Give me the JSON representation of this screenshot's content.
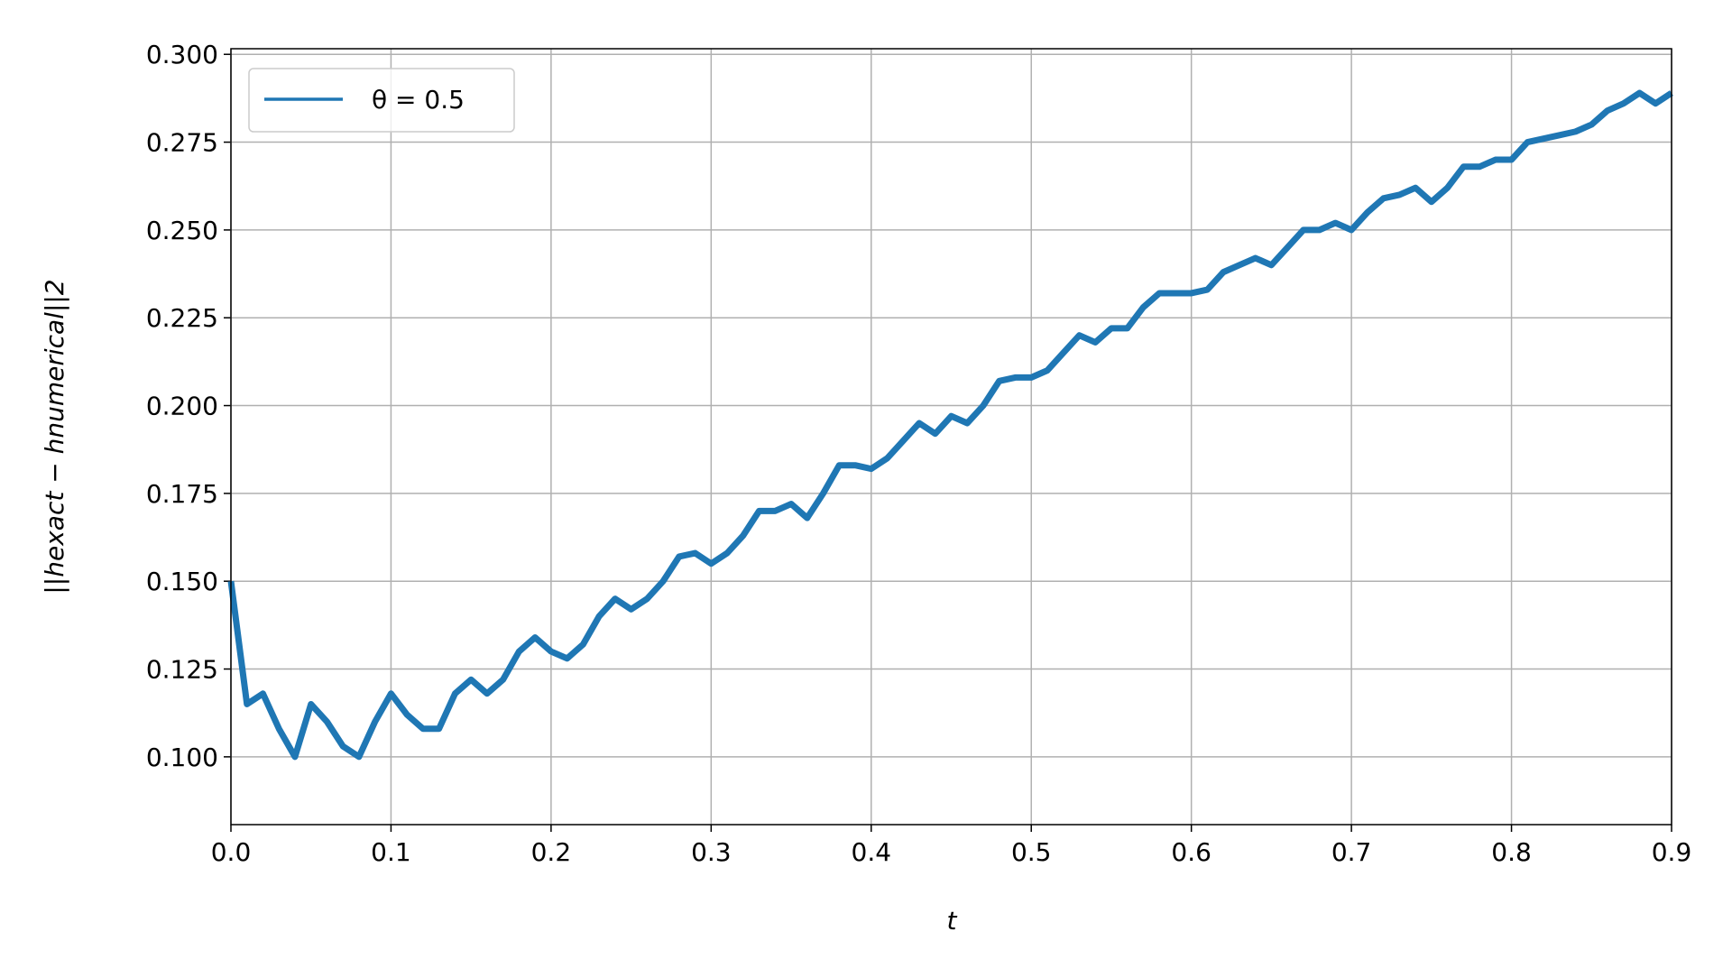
{
  "chart_data": {
    "type": "line",
    "xlabel": "t",
    "ylabel": "||hexact − hnumerical||2",
    "x": [
      0.0,
      0.01,
      0.02,
      0.03,
      0.04,
      0.05,
      0.06,
      0.07,
      0.08,
      0.09,
      0.1,
      0.11,
      0.12,
      0.13,
      0.14,
      0.15,
      0.16,
      0.17,
      0.18,
      0.19,
      0.2,
      0.21,
      0.22,
      0.23,
      0.24,
      0.25,
      0.26,
      0.27,
      0.28,
      0.29,
      0.3,
      0.31,
      0.32,
      0.33,
      0.34,
      0.35,
      0.36,
      0.37,
      0.38,
      0.39,
      0.4,
      0.41,
      0.42,
      0.43,
      0.44,
      0.45,
      0.46,
      0.47,
      0.48,
      0.49,
      0.5,
      0.51,
      0.52,
      0.53,
      0.54,
      0.55,
      0.56,
      0.57,
      0.58,
      0.59,
      0.6,
      0.61,
      0.62,
      0.63,
      0.64,
      0.65,
      0.66,
      0.67,
      0.68,
      0.69,
      0.7,
      0.71,
      0.72,
      0.73,
      0.74,
      0.75,
      0.76,
      0.77,
      0.78,
      0.79,
      0.8,
      0.81,
      0.82,
      0.83,
      0.84,
      0.85,
      0.86,
      0.87,
      0.88,
      0.89,
      0.9
    ],
    "series": [
      {
        "name": "θ = 0.5",
        "color": "#1f77b4",
        "values": [
          0.15,
          0.115,
          0.118,
          0.108,
          0.1,
          0.115,
          0.11,
          0.103,
          0.1,
          0.11,
          0.118,
          0.112,
          0.108,
          0.108,
          0.118,
          0.122,
          0.118,
          0.122,
          0.13,
          0.134,
          0.13,
          0.128,
          0.132,
          0.14,
          0.145,
          0.142,
          0.145,
          0.15,
          0.157,
          0.158,
          0.155,
          0.158,
          0.163,
          0.17,
          0.17,
          0.172,
          0.168,
          0.175,
          0.183,
          0.183,
          0.182,
          0.185,
          0.19,
          0.195,
          0.192,
          0.197,
          0.195,
          0.2,
          0.207,
          0.208,
          0.208,
          0.21,
          0.215,
          0.22,
          0.218,
          0.222,
          0.222,
          0.228,
          0.232,
          0.232,
          0.232,
          0.233,
          0.238,
          0.24,
          0.242,
          0.24,
          0.245,
          0.25,
          0.25,
          0.252,
          0.25,
          0.255,
          0.259,
          0.26,
          0.262,
          0.258,
          0.262,
          0.268,
          0.268,
          0.27,
          0.27,
          0.275,
          0.276,
          0.277,
          0.278,
          0.28,
          0.284,
          0.286,
          0.289,
          0.286,
          0.289
        ]
      }
    ],
    "xlim": [
      0,
      0.9
    ],
    "xticks": [
      {
        "value": 0,
        "label": "0.0"
      },
      0.1,
      0.2,
      0.3,
      0.4,
      0.5,
      0.6,
      0.7,
      0.8,
      0.9
    ],
    "ylim": [
      0.0807,
      0.3016
    ],
    "yticks": [
      {
        "value": 0.1,
        "label": "0.100"
      },
      {
        "value": 0.125,
        "label": "0.125"
      },
      {
        "value": 0.15,
        "label": "0.150"
      },
      {
        "value": 0.175,
        "label": "0.175"
      },
      {
        "value": 0.2,
        "label": "0.200"
      },
      {
        "value": 0.225,
        "label": "0.225"
      },
      {
        "value": 0.25,
        "label": "0.250"
      },
      {
        "value": 0.275,
        "label": "0.275"
      },
      {
        "value": 0.3,
        "label": "0.300"
      }
    ],
    "grid": true,
    "legend": "upper left"
  }
}
